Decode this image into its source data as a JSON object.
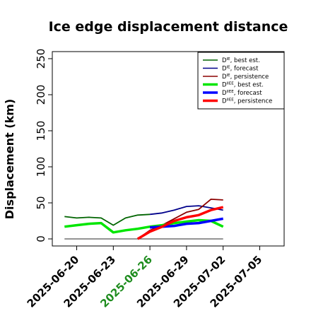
{
  "chart_data": {
    "type": "line",
    "title": "Ice edge displacement distance",
    "xlabel": "",
    "ylabel": "Displacement (km)",
    "ylim": [
      0,
      250
    ],
    "xlim": [
      "2025-06-18",
      "2025-07-07"
    ],
    "grid": false,
    "legend_position": "top-right",
    "y_ticks": [
      0,
      50,
      100,
      150,
      200,
      250
    ],
    "x_ticks": [
      {
        "date": "2025-06-20",
        "label": "2025-06-20",
        "color": "#000000"
      },
      {
        "date": "2025-06-23",
        "label": "2025-06-23",
        "color": "#000000"
      },
      {
        "date": "2025-06-26",
        "label": "2025-06-26",
        "color": "#1e8c1e"
      },
      {
        "date": "2025-06-29",
        "label": "2025-06-29",
        "color": "#000000"
      },
      {
        "date": "2025-07-02",
        "label": "2025-07-02",
        "color": "#000000"
      },
      {
        "date": "2025-07-05",
        "label": "2025-07-05",
        "color": "#000000"
      }
    ],
    "reference_line": {
      "x_start": "2025-06-19",
      "x_end": "2025-07-02",
      "y": 0,
      "color": "#555555"
    },
    "series": [
      {
        "legend_base": "D",
        "legend_sup": "IE",
        "legend_rest": ", best est.",
        "color": "#006400",
        "width": 1.8,
        "x": [
          "2025-06-19",
          "2025-06-20",
          "2025-06-21",
          "2025-06-22",
          "2025-06-23",
          "2025-06-24",
          "2025-06-25",
          "2025-06-26"
        ],
        "y": [
          31,
          29,
          30,
          29,
          19,
          29,
          33,
          34
        ]
      },
      {
        "legend_base": "D",
        "legend_sup": "IE",
        "legend_rest": ", forecast",
        "color": "#00008b",
        "width": 1.8,
        "x": [
          "2025-06-26",
          "2025-06-27",
          "2025-06-28",
          "2025-06-29",
          "2025-06-30",
          "2025-07-01",
          "2025-07-02"
        ],
        "y": [
          34,
          36,
          40,
          45,
          46,
          43,
          40
        ]
      },
      {
        "legend_base": "D",
        "legend_sup": "IE",
        "legend_rest": ", persistence",
        "color": "#8b0000",
        "width": 1.8,
        "x": [
          "2025-06-25",
          "2025-06-26",
          "2025-06-27",
          "2025-06-28",
          "2025-06-29",
          "2025-06-30",
          "2025-07-01",
          "2025-07-02"
        ],
        "y": [
          0,
          12,
          19,
          28,
          37,
          41,
          55,
          54
        ]
      },
      {
        "legend_base": "D",
        "legend_sup": "IIEE",
        "legend_rest": ", best est.",
        "color": "#00e600",
        "width": 3.5,
        "x": [
          "2025-06-19",
          "2025-06-20",
          "2025-06-21",
          "2025-06-22",
          "2025-06-23",
          "2025-06-24",
          "2025-06-25",
          "2025-06-26",
          "2025-06-27",
          "2025-06-28",
          "2025-06-29",
          "2025-06-30",
          "2025-07-01",
          "2025-07-02"
        ],
        "y": [
          17,
          19,
          21,
          22,
          9,
          12,
          14,
          17,
          19,
          22,
          24,
          26,
          25,
          17
        ]
      },
      {
        "legend_base": "D",
        "legend_sup": "IIEE",
        "legend_rest": ", forecast",
        "color": "#0000ff",
        "width": 3.5,
        "x": [
          "2025-06-26",
          "2025-06-27",
          "2025-06-28",
          "2025-06-29",
          "2025-06-30",
          "2025-07-01",
          "2025-07-02"
        ],
        "y": [
          16,
          17,
          18,
          21,
          22,
          25,
          28
        ]
      },
      {
        "legend_base": "D",
        "legend_sup": "IIEE",
        "legend_rest": ", persistence",
        "color": "#ff0000",
        "width": 3.5,
        "x": [
          "2025-06-25",
          "2025-06-26",
          "2025-06-27",
          "2025-06-28",
          "2025-06-29",
          "2025-06-30",
          "2025-07-01",
          "2025-07-02"
        ],
        "y": [
          0,
          10,
          17,
          25,
          30,
          33,
          40,
          44
        ]
      }
    ]
  }
}
